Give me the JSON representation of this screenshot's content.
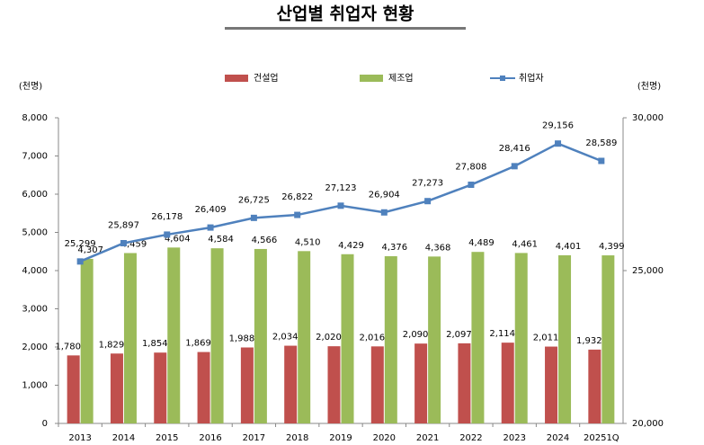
{
  "chart_data": {
    "type": "bar",
    "title": "산업별 취업자 현황",
    "y_label": "(천명)",
    "y2_label": "(천명)",
    "categories": [
      "2013",
      "2014",
      "2015",
      "2016",
      "2017",
      "2018",
      "2019",
      "2020",
      "2021",
      "2022",
      "2023",
      "2024",
      "20251Q"
    ],
    "series": [
      {
        "name": "건설업",
        "color": "#c0504d",
        "type": "bar",
        "values": [
          1780,
          1829,
          1854,
          1869,
          1988,
          2034,
          2020,
          2016,
          2090,
          2097,
          2114,
          2011,
          1932
        ],
        "value_labels": [
          "1,780",
          "1,829",
          "1,854",
          "1,869",
          "1,988",
          "2,034",
          "2,020",
          "2,016",
          "2,090",
          "2,097",
          "2,114",
          "2,011",
          "1,932"
        ]
      },
      {
        "name": "제조업",
        "color": "#9bbb59",
        "type": "bar",
        "values": [
          4307,
          4459,
          4604,
          4584,
          4566,
          4510,
          4429,
          4376,
          4368,
          4489,
          4461,
          4401,
          4399
        ],
        "value_labels": [
          "4,307",
          "4,459",
          "4,604",
          "4,584",
          "4,566",
          "4,510",
          "4,429",
          "4,376",
          "4,368",
          "4,489",
          "4,461",
          "4,401",
          "4,399"
        ]
      },
      {
        "name": "취업자",
        "color": "#4f81bd",
        "type": "line",
        "axis": "y2",
        "values": [
          25299,
          25897,
          26178,
          26409,
          26725,
          26822,
          27123,
          26904,
          27273,
          27808,
          28416,
          29156,
          28589
        ],
        "value_labels": [
          "25,299",
          "25,897",
          "26,178",
          "26,409",
          "26,725",
          "26,822",
          "27,123",
          "26,904",
          "27,273",
          "27,808",
          "28,416",
          "29,156",
          "28,589"
        ]
      }
    ],
    "ylim": [
      0,
      8000
    ],
    "yticks": [
      0,
      {
        "value": 1000,
        "label": "1,000"
      },
      {
        "value": 2000,
        "label": "2,000"
      },
      {
        "value": 3000,
        "label": "3,000"
      },
      {
        "value": 4000,
        "label": "4,000"
      },
      {
        "value": 5000,
        "label": "5,000"
      },
      {
        "value": 6000,
        "label": "6,000"
      },
      {
        "value": 7000,
        "label": "7,000"
      },
      {
        "value": 8000,
        "label": "8,000"
      }
    ],
    "y2lim": [
      20000,
      30000
    ],
    "y2ticks": [
      {
        "value": 20000,
        "label": "20,000"
      },
      {
        "value": 25000,
        "label": "25,000"
      },
      {
        "value": 30000,
        "label": "30,000"
      }
    ],
    "grid": false,
    "legend": "top"
  }
}
